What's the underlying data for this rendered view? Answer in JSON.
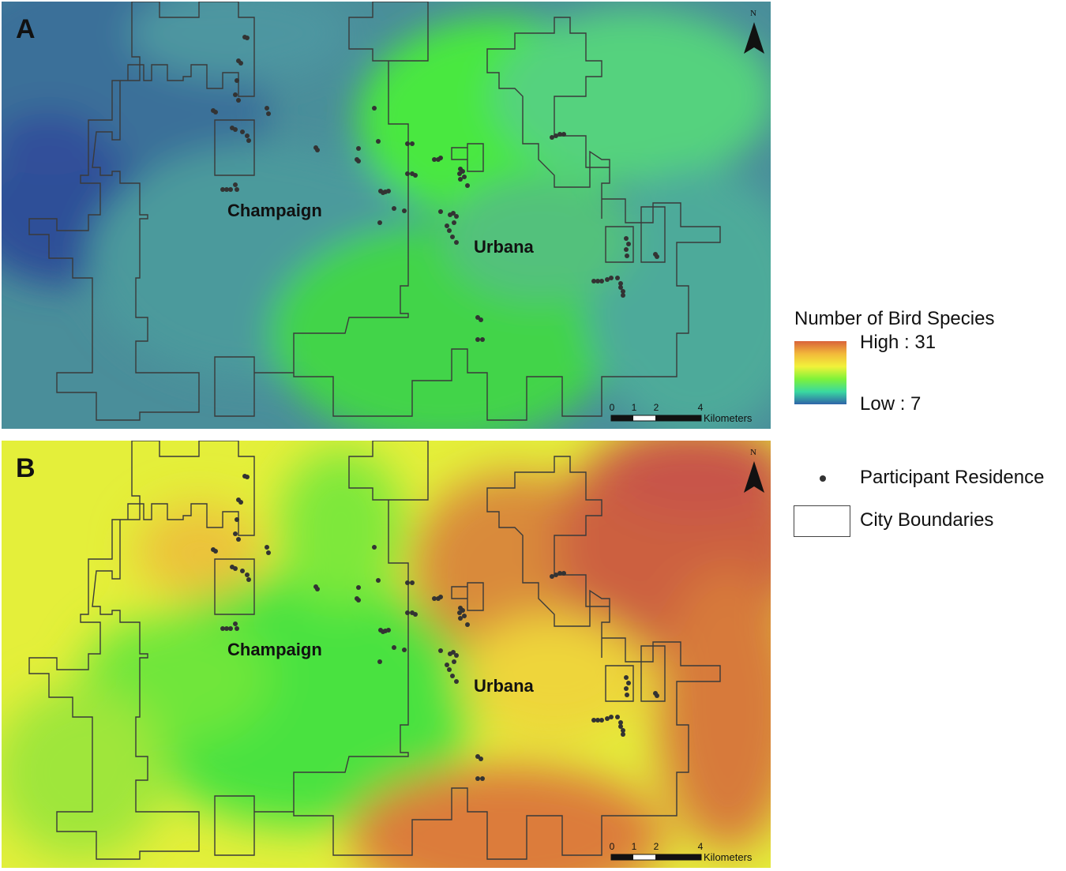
{
  "panels": [
    {
      "letter": "A",
      "labels": {
        "champaign": "Champaign",
        "urbana": "Urbana"
      },
      "north": "N",
      "scale": {
        "ticks": [
          "0",
          "1",
          "2",
          "4"
        ],
        "unit": "Kilometers"
      }
    },
    {
      "letter": "B",
      "labels": {
        "champaign": "Champaign",
        "urbana": "Urbana"
      },
      "north": "N",
      "scale": {
        "ticks": [
          "0",
          "1",
          "2",
          "4"
        ],
        "unit": "Kilometers"
      }
    }
  ],
  "legend": {
    "title": "Number of Bird Species",
    "high": "High : 31",
    "low": "Low : 7",
    "residence": "Participant Residence",
    "boundaries": "City Boundaries",
    "ramp_colors": [
      "#d9633a",
      "#f2b93a",
      "#f2f23a",
      "#7ef23a",
      "#3ad9a0",
      "#2f63a8"
    ]
  },
  "colors": {
    "boundary": "#3a3a3a",
    "dot": "#333333"
  }
}
